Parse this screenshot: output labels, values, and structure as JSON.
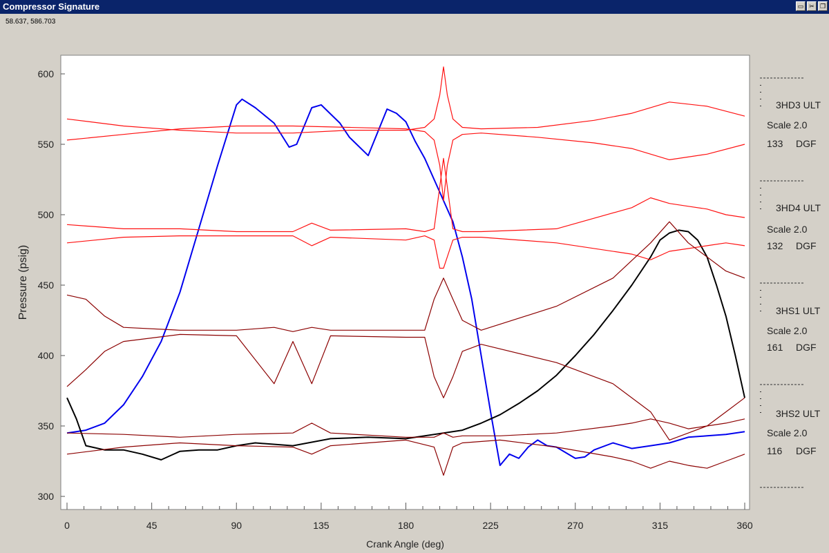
{
  "window": {
    "title": "Compressor Signature",
    "buttons": [
      {
        "name": "folder-icon",
        "glyph": "▭"
      },
      {
        "name": "scissors-icon",
        "glyph": "✂"
      },
      {
        "name": "restore-icon",
        "glyph": "❐"
      }
    ]
  },
  "cursor_readout": "58.637, 586.703",
  "chart_data": {
    "type": "line",
    "xlabel": "Crank Angle (deg)",
    "ylabel": "Pressure (psig)",
    "xlim": [
      0,
      360
    ],
    "ylim": [
      300,
      600
    ],
    "xticks": [
      0,
      45,
      90,
      135,
      180,
      225,
      270,
      315,
      360
    ],
    "yticks": [
      300,
      350,
      400,
      450,
      500,
      550,
      600
    ],
    "series": [
      {
        "color": "#0000ee",
        "x": [
          0,
          10,
          20,
          30,
          40,
          50,
          60,
          70,
          80,
          90,
          93,
          100,
          110,
          118,
          122,
          130,
          135,
          145,
          150,
          160,
          170,
          175,
          180,
          185,
          190,
          195,
          200,
          205,
          210,
          215,
          220,
          225,
          230,
          235,
          240,
          245,
          250,
          255,
          260,
          270,
          275,
          280,
          290,
          300,
          310,
          320,
          330,
          340,
          350,
          360
        ],
        "values": [
          345,
          347,
          352,
          365,
          385,
          410,
          445,
          490,
          535,
          578,
          582,
          576,
          565,
          548,
          550,
          576,
          578,
          565,
          555,
          542,
          575,
          572,
          566,
          552,
          540,
          525,
          510,
          495,
          470,
          440,
          400,
          360,
          322,
          330,
          327,
          335,
          340,
          336,
          335,
          327,
          328,
          333,
          338,
          334,
          336,
          338,
          342,
          343,
          344,
          346
        ]
      },
      {
        "color": "#000000",
        "x": [
          0,
          5,
          10,
          20,
          30,
          40,
          50,
          60,
          70,
          80,
          90,
          100,
          120,
          140,
          160,
          180,
          200,
          210,
          220,
          225,
          230,
          240,
          250,
          260,
          270,
          280,
          290,
          300,
          310,
          315,
          320,
          325,
          330,
          335,
          340,
          345,
          350,
          355,
          360
        ],
        "values": [
          370,
          355,
          336,
          333,
          333,
          330,
          326,
          332,
          333,
          333,
          336,
          338,
          336,
          341,
          342,
          341,
          345,
          347,
          352,
          355,
          358,
          366,
          375,
          386,
          400,
          415,
          432,
          450,
          470,
          482,
          487,
          489,
          488,
          482,
          470,
          450,
          428,
          400,
          370
        ]
      },
      {
        "color": "#ff1010",
        "x": [
          0,
          30,
          60,
          90,
          120,
          150,
          180,
          190,
          195,
          198,
          200,
          202,
          205,
          210,
          220,
          250,
          280,
          300,
          320,
          340,
          360
        ],
        "values": [
          568,
          563,
          560,
          558,
          558,
          560,
          560,
          562,
          568,
          585,
          605,
          585,
          568,
          562,
          561,
          562,
          567,
          572,
          580,
          577,
          570
        ]
      },
      {
        "color": "#ff1010",
        "x": [
          0,
          30,
          60,
          90,
          120,
          150,
          180,
          190,
          195,
          198,
          200,
          202,
          205,
          210,
          220,
          250,
          280,
          300,
          320,
          340,
          360
        ],
        "values": [
          553,
          557,
          561,
          563,
          563,
          562,
          561,
          559,
          553,
          535,
          510,
          535,
          553,
          557,
          558,
          555,
          551,
          547,
          539,
          543,
          550
        ]
      },
      {
        "color": "#ff1010",
        "x": [
          0,
          30,
          60,
          90,
          120,
          130,
          140,
          180,
          190,
          195,
          198,
          200,
          205,
          210,
          220,
          260,
          300,
          310,
          320,
          330,
          340,
          350,
          360
        ],
        "values": [
          493,
          490,
          490,
          488,
          488,
          494,
          489,
          490,
          488,
          490,
          520,
          540,
          490,
          488,
          488,
          490,
          505,
          512,
          508,
          506,
          504,
          500,
          498
        ]
      },
      {
        "color": "#ff1010",
        "x": [
          0,
          30,
          60,
          90,
          120,
          130,
          140,
          180,
          190,
          195,
          198,
          200,
          205,
          210,
          220,
          260,
          300,
          310,
          320,
          330,
          340,
          350,
          360
        ],
        "values": [
          480,
          484,
          485,
          485,
          485,
          478,
          484,
          482,
          485,
          482,
          462,
          462,
          482,
          484,
          484,
          480,
          472,
          468,
          474,
          476,
          478,
          480,
          478
        ]
      },
      {
        "color": "#8b0000",
        "x": [
          0,
          10,
          20,
          30,
          60,
          90,
          110,
          120,
          130,
          140,
          180,
          190,
          195,
          200,
          205,
          210,
          220,
          260,
          290,
          310,
          320,
          330,
          340,
          350,
          360
        ],
        "values": [
          443,
          440,
          428,
          420,
          418,
          418,
          420,
          417,
          420,
          418,
          418,
          418,
          440,
          455,
          440,
          425,
          418,
          435,
          455,
          480,
          495,
          480,
          470,
          460,
          455
        ]
      },
      {
        "color": "#8b0000",
        "x": [
          0,
          10,
          20,
          30,
          60,
          90,
          110,
          120,
          130,
          140,
          180,
          190,
          195,
          200,
          205,
          210,
          220,
          260,
          290,
          310,
          320,
          330,
          340,
          350,
          360
        ],
        "values": [
          378,
          390,
          403,
          410,
          415,
          414,
          380,
          410,
          380,
          414,
          413,
          413,
          385,
          370,
          385,
          403,
          408,
          395,
          380,
          360,
          340,
          345,
          350,
          360,
          370
        ]
      },
      {
        "color": "#8b0000",
        "x": [
          0,
          30,
          60,
          90,
          120,
          130,
          140,
          180,
          195,
          200,
          205,
          210,
          230,
          260,
          290,
          300,
          310,
          320,
          330,
          340,
          350,
          360
        ],
        "values": [
          345,
          344,
          342,
          344,
          345,
          352,
          345,
          342,
          342,
          345,
          342,
          343,
          343,
          345,
          350,
          352,
          355,
          352,
          348,
          350,
          352,
          355
        ]
      },
      {
        "color": "#8b0000",
        "x": [
          0,
          30,
          60,
          90,
          120,
          130,
          140,
          180,
          195,
          200,
          205,
          210,
          230,
          260,
          290,
          300,
          310,
          320,
          330,
          340,
          350,
          360
        ],
        "values": [
          330,
          335,
          338,
          336,
          335,
          330,
          336,
          340,
          335,
          315,
          335,
          338,
          340,
          335,
          328,
          325,
          320,
          325,
          322,
          320,
          325,
          330
        ]
      }
    ]
  },
  "side_labels": [
    {
      "name": "3HD3 ULT",
      "scale": "Scale 2.0",
      "value": "133",
      "unit": "DGF"
    },
    {
      "name": "3HD4 ULT",
      "scale": "Scale 2.0",
      "value": "132",
      "unit": "DGF"
    },
    {
      "name": "3HS1 ULT",
      "scale": "Scale 2.0",
      "value": "161",
      "unit": "DGF"
    },
    {
      "name": "3HS2 ULT",
      "scale": "Scale 2.0",
      "value": "116",
      "unit": "DGF"
    }
  ]
}
